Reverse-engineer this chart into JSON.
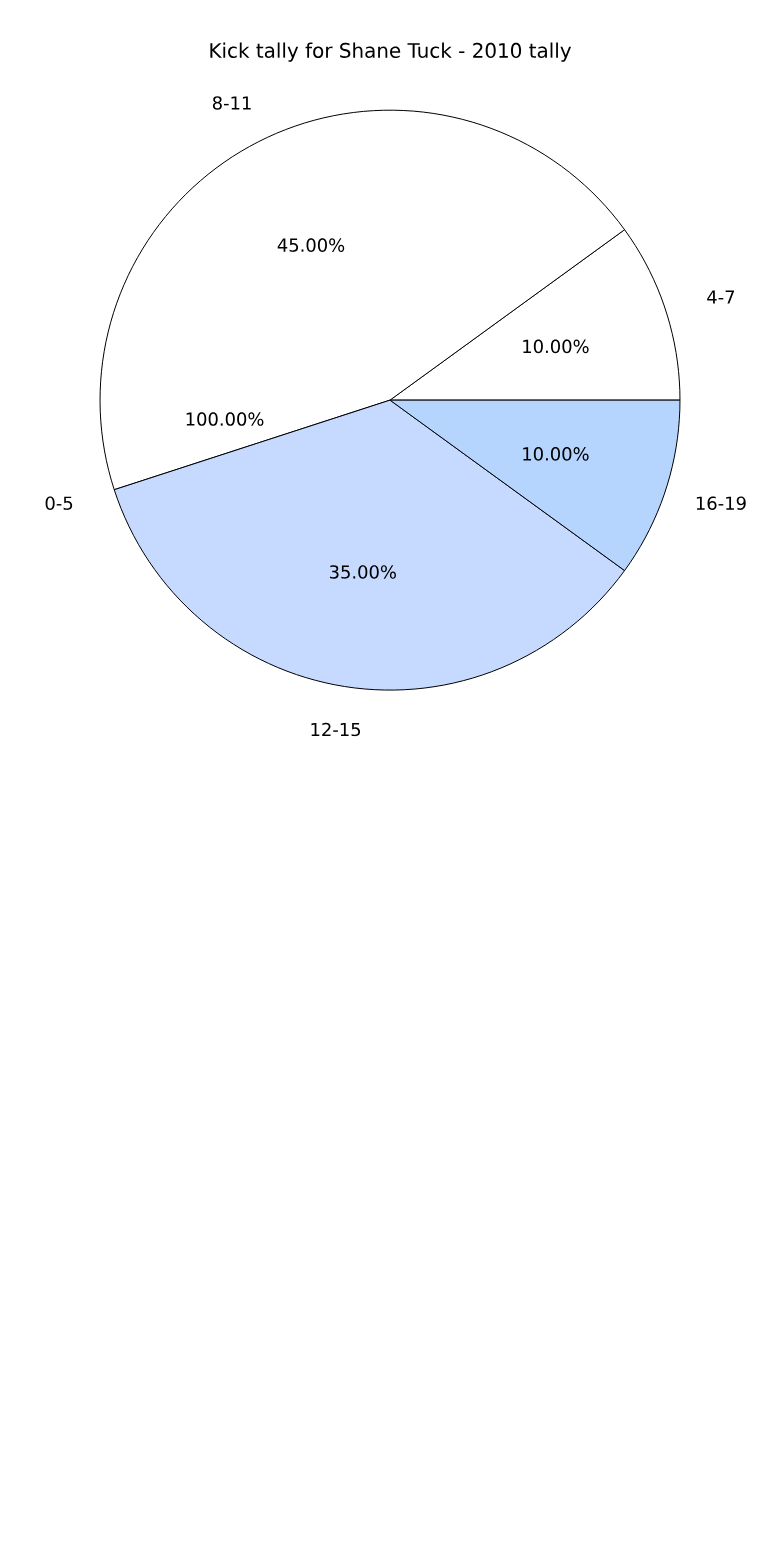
{
  "chart_data": {
    "type": "pie",
    "title": "Kick tally for Shane Tuck - 2010 tally",
    "categories": [
      "4-7",
      "8-11",
      "0-5",
      "12-15",
      "16-19"
    ],
    "values": [
      10,
      45,
      0,
      35,
      10
    ],
    "value_labels": [
      "10.00%",
      "45.00%",
      null,
      "35.00%",
      "10.00%"
    ],
    "annotations": [
      "100.00%"
    ],
    "colors": [
      "#ffffff",
      "#ffffff",
      "#ffffff",
      "#c6d9ff",
      "#b5d5ff"
    ]
  }
}
